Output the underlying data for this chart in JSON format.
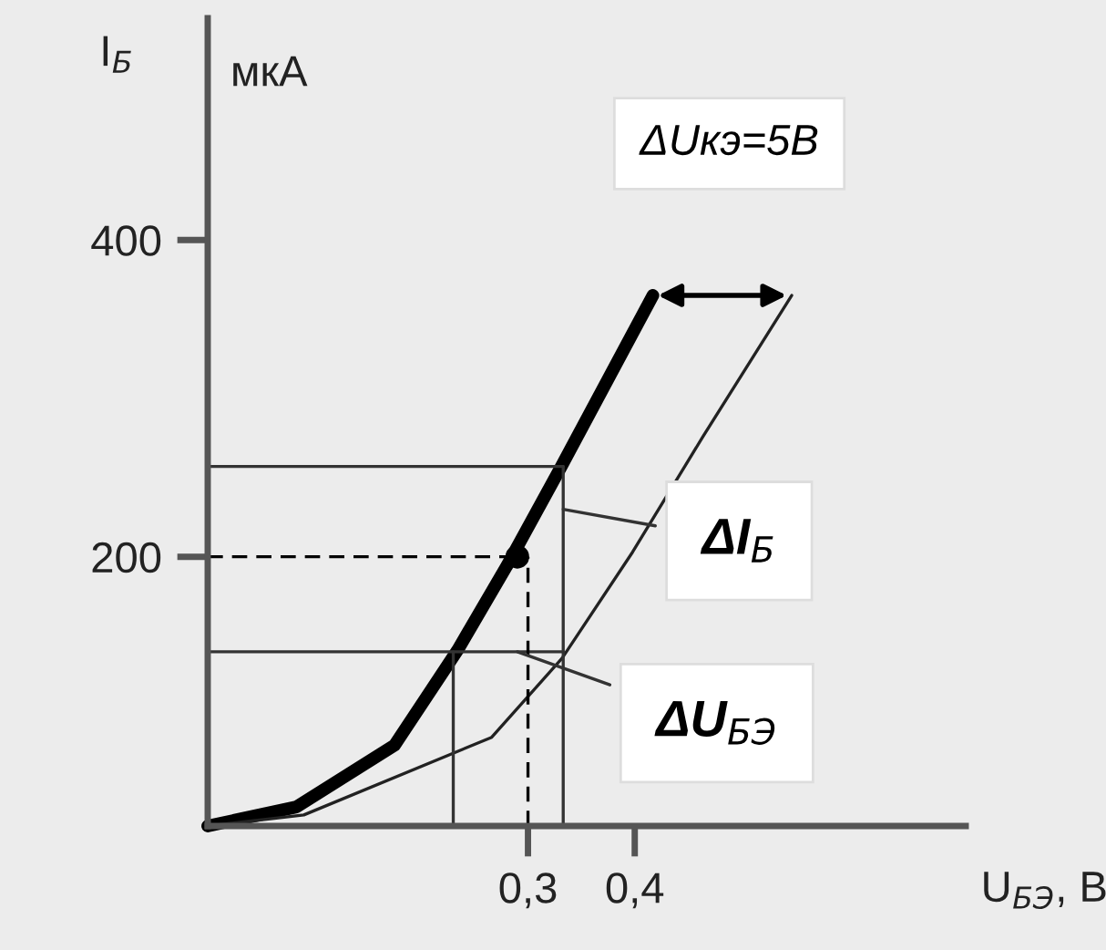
{
  "chart_data": {
    "type": "line",
    "xlabel": "U$_{БЭ}$, В",
    "ylabel": "I$_{Б}$",
    "xlim": [
      0,
      0.71
    ],
    "ylim": [
      30,
      540
    ],
    "xticks": [
      {
        "value": 0.3,
        "label": "0,3"
      },
      {
        "value": 0.4,
        "label": "0,4"
      }
    ],
    "yticks": [
      200,
      400
    ],
    "grid": false,
    "legend": false,
    "series": [
      {
        "color": "#000000",
        "x": [
          0,
          0.083,
          0.175,
          0.234,
          0.28,
          0.332,
          0.417
        ],
        "values": [
          30,
          42,
          81,
          141,
          194,
          258,
          365
        ]
      },
      {
        "color": "#222222",
        "x": [
          0,
          0.09,
          0.266,
          0.332,
          0.398,
          0.464,
          0.547
        ],
        "values": [
          30,
          37,
          86,
          136,
          203,
          276,
          365
        ]
      },
      {
        "color": "#333333",
        "x": [
          0,
          0.333
        ],
        "values": [
          257,
          257
        ]
      },
      {
        "color": "#333333",
        "x": [
          0,
          0.333
        ],
        "values": [
          140,
          140
        ]
      },
      {
        "color": "#333333",
        "x": [
          0.23,
          0.23
        ],
        "values": [
          30,
          140
        ]
      },
      {
        "color": "#333333",
        "x": [
          0.333,
          0.333
        ],
        "values": [
          30,
          257
        ]
      },
      {
        "color": "#000000",
        "x": [
          0,
          0.3
        ],
        "values": [
          200,
          200
        ],
        "line_style": "dashed"
      },
      {
        "color": "#000000",
        "x": [
          0.3,
          0.3
        ],
        "values": [
          30,
          200
        ],
        "line_style": "dashed"
      },
      {
        "type": "scatter",
        "color": "#000000",
        "x": [
          0.29
        ],
        "values": [
          200
        ],
        "marker": "circle"
      }
    ],
    "annotations": [
      "мкА",
      "ΔUкэ=5В",
      {
        "text": "ΔI$_{Б}$",
        "x": 0.333,
        "y": 230
      },
      {
        "text": "ΔU$_{БЭ}$",
        "x": 0.29,
        "y": 140
      }
    ]
  }
}
